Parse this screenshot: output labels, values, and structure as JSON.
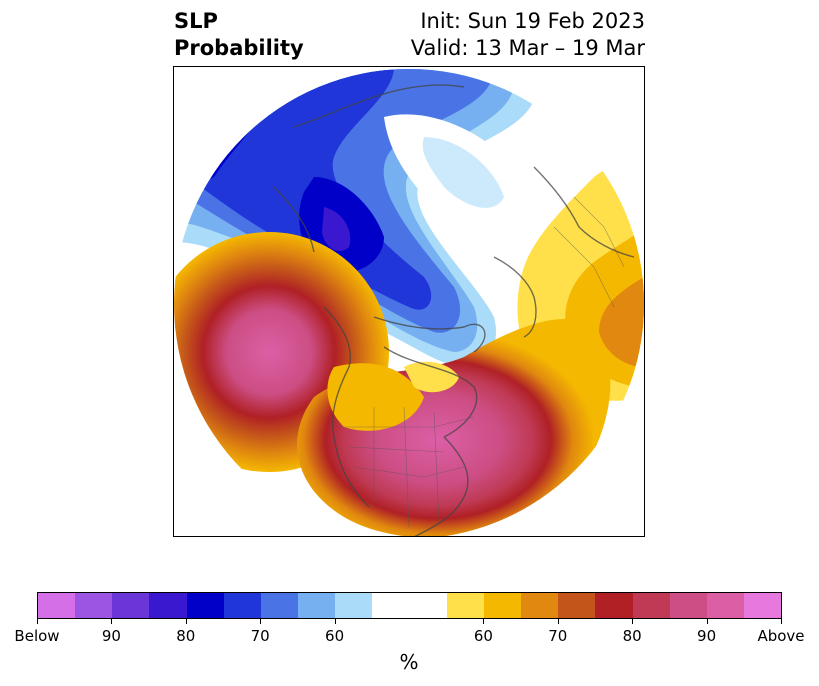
{
  "header": {
    "title_line1": "SLP",
    "title_line2": "Probability",
    "init": "Init: Sun 19 Feb 2023",
    "valid": "Valid: 13 Mar – 19 Mar"
  },
  "colorbar": {
    "colors": [
      "#d56fe8",
      "#9c55e2",
      "#6a36d8",
      "#3a18d0",
      "#0000c8",
      "#2036d8",
      "#4a74e6",
      "#76b0f0",
      "#aadcfa",
      "#ffffff",
      "#ffffff",
      "#ffe04a",
      "#f5b800",
      "#e0880f",
      "#c4551a",
      "#b02025",
      "#c03a55",
      "#cc4e84",
      "#dc5fa6",
      "#e678de"
    ],
    "ticks": [
      {
        "label": "Below",
        "frac": 0.0
      },
      {
        "label": "90",
        "frac": 0.1
      },
      {
        "label": "80",
        "frac": 0.2
      },
      {
        "label": "70",
        "frac": 0.3
      },
      {
        "label": "60",
        "frac": 0.4
      },
      {
        "label": "60",
        "frac": 0.6
      },
      {
        "label": "70",
        "frac": 0.7
      },
      {
        "label": "80",
        "frac": 0.8
      },
      {
        "label": "90",
        "frac": 0.9
      },
      {
        "label": "Above",
        "frac": 1.0
      }
    ],
    "unit": "%"
  }
}
